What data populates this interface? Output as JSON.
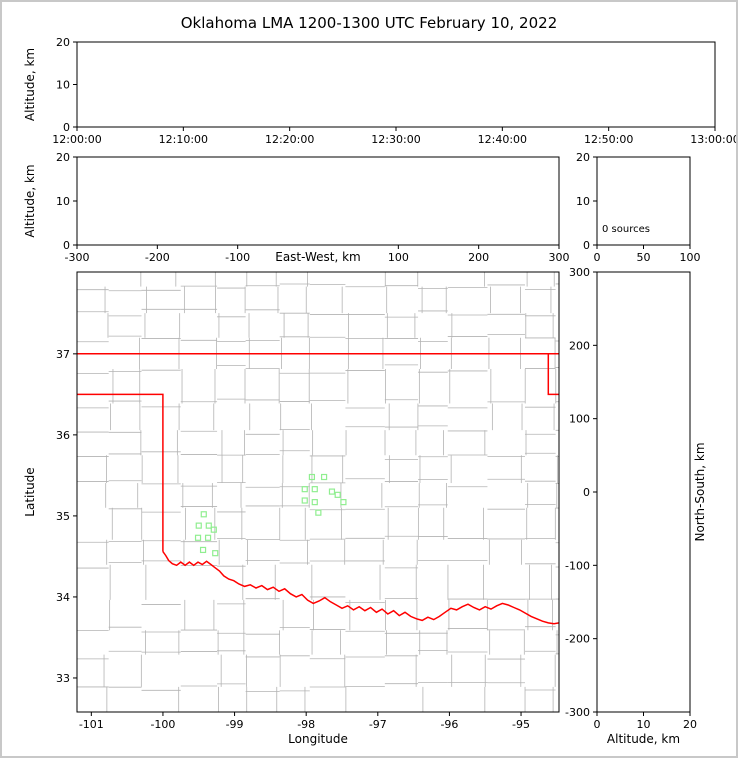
{
  "figure_title": "Oklahoma LMA 1200-1300 UTC February 10, 2022",
  "colors": {
    "background": "#ffffff",
    "frame_border": "#c8c8c8",
    "axis": "#000000",
    "county_lines": "#b3b3b3",
    "state_border": "#ff0000",
    "station_marker": "#90ee90"
  },
  "chart_data": [
    {
      "id": "time_height",
      "type": "scatter",
      "ylabel": "Altitude, km",
      "xlim": [
        0,
        3600
      ],
      "ylim": [
        0,
        20
      ],
      "xticks": [
        {
          "v": 0,
          "label": "12:00:00"
        },
        {
          "v": 600,
          "label": "12:10:00"
        },
        {
          "v": 1200,
          "label": "12:20:00"
        },
        {
          "v": 1800,
          "label": "12:30:00"
        },
        {
          "v": 2400,
          "label": "12:40:00"
        },
        {
          "v": 3000,
          "label": "12:50:00"
        },
        {
          "v": 3600,
          "label": "13:00:00"
        }
      ],
      "yticks": [
        {
          "v": 0,
          "label": "0"
        },
        {
          "v": 10,
          "label": "10"
        },
        {
          "v": 20,
          "label": "20"
        }
      ],
      "points": []
    },
    {
      "id": "ew_height",
      "type": "scatter",
      "xlabel": "East-West, km",
      "xlabel_inline": true,
      "ylabel": "Altitude, km",
      "xlim": [
        -300,
        300
      ],
      "ylim": [
        0,
        20
      ],
      "xticks": [
        {
          "v": -300,
          "label": "-300"
        },
        {
          "v": -200,
          "label": "-200"
        },
        {
          "v": -100,
          "label": "-100"
        },
        {
          "v": 100,
          "label": "100"
        },
        {
          "v": 200,
          "label": "200"
        },
        {
          "v": 300,
          "label": "300"
        }
      ],
      "yticks": [
        {
          "v": 0,
          "label": "0"
        },
        {
          "v": 10,
          "label": "10"
        },
        {
          "v": 20,
          "label": "20"
        }
      ],
      "points": []
    },
    {
      "id": "alt_histogram",
      "type": "bar",
      "xlim": [
        0,
        100
      ],
      "ylim": [
        0,
        20
      ],
      "xticks": [
        {
          "v": 0,
          "label": "0"
        },
        {
          "v": 50,
          "label": "50"
        },
        {
          "v": 100,
          "label": "100"
        }
      ],
      "yticks": [
        {
          "v": 0,
          "label": "0"
        },
        {
          "v": 10,
          "label": "10"
        },
        {
          "v": 20,
          "label": "20"
        }
      ],
      "annotation": "0 sources",
      "values": []
    },
    {
      "id": "plan_map",
      "type": "scatter",
      "xlabel": "Longitude",
      "ylabel": "Latitude",
      "xlim": [
        -101.2,
        -94.47
      ],
      "ylim": [
        32.58,
        38.01
      ],
      "xticks": [
        {
          "v": -101,
          "label": "-101"
        },
        {
          "v": -100,
          "label": "-100"
        },
        {
          "v": -99,
          "label": "-99"
        },
        {
          "v": -98,
          "label": "-98"
        },
        {
          "v": -97,
          "label": "-97"
        },
        {
          "v": -96,
          "label": "-96"
        },
        {
          "v": -95,
          "label": "-95"
        }
      ],
      "yticks": [
        {
          "v": 33,
          "label": "33"
        },
        {
          "v": 34,
          "label": "34"
        },
        {
          "v": 35,
          "label": "35"
        },
        {
          "v": 36,
          "label": "36"
        },
        {
          "v": 37,
          "label": "37"
        }
      ],
      "stations": [
        [
          -99.43,
          35.02
        ],
        [
          -99.5,
          34.88
        ],
        [
          -99.36,
          34.88
        ],
        [
          -99.29,
          34.83
        ],
        [
          -99.51,
          34.73
        ],
        [
          -99.37,
          34.73
        ],
        [
          -99.44,
          34.58
        ],
        [
          -99.27,
          34.54
        ],
        [
          -97.92,
          35.48
        ],
        [
          -97.75,
          35.48
        ],
        [
          -98.02,
          35.33
        ],
        [
          -97.88,
          35.33
        ],
        [
          -97.64,
          35.3
        ],
        [
          -97.56,
          35.26
        ],
        [
          -98.02,
          35.19
        ],
        [
          -97.88,
          35.17
        ],
        [
          -97.48,
          35.17
        ],
        [
          -97.83,
          35.04
        ]
      ],
      "state_border": [
        [
          [
            -101.2,
            37.0
          ],
          [
            -94.47,
            37.0
          ]
        ],
        [
          [
            -94.62,
            37.0
          ],
          [
            -94.62,
            36.5
          ],
          [
            -94.47,
            36.5
          ]
        ],
        [
          [
            -101.2,
            36.5
          ],
          [
            -100.0,
            36.5
          ],
          [
            -100.0,
            34.56
          ]
        ],
        [
          [
            -100.0,
            34.56
          ],
          [
            -99.96,
            34.51
          ],
          [
            -99.92,
            34.45
          ],
          [
            -99.87,
            34.41
          ],
          [
            -99.81,
            34.39
          ],
          [
            -99.75,
            34.43
          ],
          [
            -99.69,
            34.39
          ],
          [
            -99.63,
            34.43
          ],
          [
            -99.57,
            34.39
          ],
          [
            -99.51,
            34.43
          ],
          [
            -99.45,
            34.4
          ],
          [
            -99.39,
            34.44
          ],
          [
            -99.33,
            34.4
          ],
          [
            -99.27,
            34.36
          ],
          [
            -99.21,
            34.32
          ],
          [
            -99.15,
            34.26
          ],
          [
            -99.08,
            34.22
          ],
          [
            -99.01,
            34.2
          ],
          [
            -98.94,
            34.16
          ],
          [
            -98.86,
            34.13
          ],
          [
            -98.78,
            34.15
          ],
          [
            -98.7,
            34.11
          ],
          [
            -98.62,
            34.14
          ],
          [
            -98.54,
            34.09
          ],
          [
            -98.46,
            34.12
          ],
          [
            -98.38,
            34.07
          ],
          [
            -98.3,
            34.1
          ],
          [
            -98.22,
            34.04
          ],
          [
            -98.14,
            34.0
          ],
          [
            -98.06,
            34.03
          ],
          [
            -97.98,
            33.96
          ],
          [
            -97.9,
            33.92
          ],
          [
            -97.82,
            33.95
          ],
          [
            -97.74,
            33.99
          ],
          [
            -97.66,
            33.94
          ],
          [
            -97.58,
            33.9
          ],
          [
            -97.5,
            33.86
          ],
          [
            -97.42,
            33.89
          ],
          [
            -97.34,
            33.84
          ],
          [
            -97.26,
            33.88
          ],
          [
            -97.18,
            33.83
          ],
          [
            -97.1,
            33.87
          ],
          [
            -97.02,
            33.81
          ],
          [
            -96.94,
            33.85
          ],
          [
            -96.86,
            33.79
          ],
          [
            -96.78,
            33.83
          ],
          [
            -96.7,
            33.77
          ],
          [
            -96.62,
            33.81
          ],
          [
            -96.54,
            33.76
          ],
          [
            -96.46,
            33.73
          ],
          [
            -96.38,
            33.71
          ],
          [
            -96.3,
            33.75
          ],
          [
            -96.22,
            33.72
          ],
          [
            -96.14,
            33.76
          ],
          [
            -96.06,
            33.81
          ],
          [
            -95.98,
            33.86
          ],
          [
            -95.9,
            33.84
          ],
          [
            -95.82,
            33.88
          ],
          [
            -95.74,
            33.91
          ],
          [
            -95.66,
            33.87
          ],
          [
            -95.58,
            33.84
          ],
          [
            -95.5,
            33.88
          ],
          [
            -95.42,
            33.85
          ],
          [
            -95.34,
            33.89
          ],
          [
            -95.26,
            33.92
          ],
          [
            -95.18,
            33.9
          ],
          [
            -95.1,
            33.87
          ],
          [
            -95.02,
            33.84
          ],
          [
            -94.94,
            33.8
          ],
          [
            -94.86,
            33.76
          ],
          [
            -94.78,
            33.73
          ],
          [
            -94.7,
            33.7
          ],
          [
            -94.62,
            33.68
          ],
          [
            -94.54,
            33.67
          ],
          [
            -94.47,
            33.68
          ]
        ]
      ],
      "county_grid": {
        "col_step_min": 0.36,
        "col_step_max": 0.58,
        "row_step_min": 0.3,
        "row_step_max": 0.46,
        "jitter": 0.07,
        "skip_fraction": 0.12,
        "seed": 42
      }
    },
    {
      "id": "ns_height",
      "type": "scatter",
      "xlabel": "Altitude, km",
      "ylabel_right": "North-South, km",
      "xlim": [
        0,
        20
      ],
      "ylim": [
        -300,
        300
      ],
      "xticks": [
        {
          "v": 0,
          "label": "0"
        },
        {
          "v": 10,
          "label": "10"
        },
        {
          "v": 20,
          "label": "20"
        }
      ],
      "yticks": [
        {
          "v": 300,
          "label": "300"
        },
        {
          "v": 200,
          "label": "200"
        },
        {
          "v": 100,
          "label": "100"
        },
        {
          "v": 0,
          "label": "0"
        },
        {
          "v": -100,
          "label": "-100"
        },
        {
          "v": -200,
          "label": "-200"
        },
        {
          "v": -300,
          "label": "-300"
        }
      ],
      "points": []
    }
  ]
}
